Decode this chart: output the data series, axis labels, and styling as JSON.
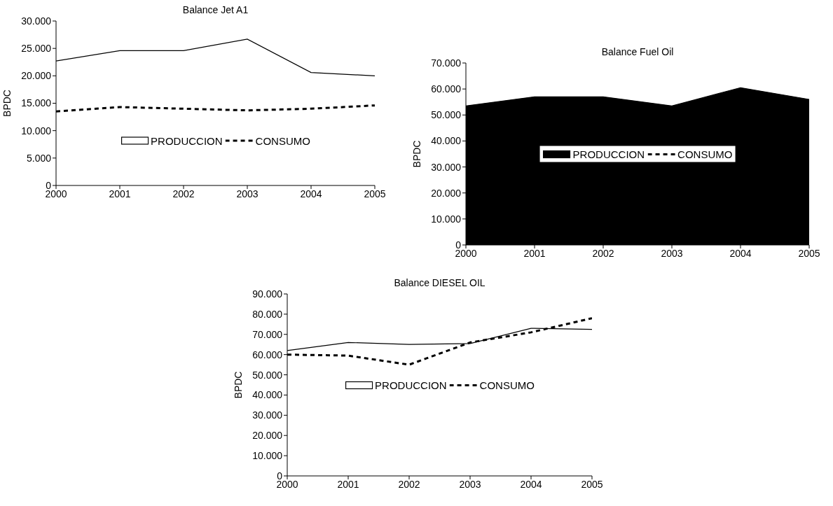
{
  "chart_data": [
    {
      "type": "area",
      "title": "Balance Jet A1",
      "ylabel": "BPDC",
      "x": [
        2000,
        2001,
        2002,
        2003,
        2004,
        2005
      ],
      "xlim": [
        2000,
        2005
      ],
      "xticks": [
        2000,
        2001,
        2002,
        2003,
        2004,
        2005
      ],
      "ylim": [
        0,
        30000
      ],
      "yticks": [
        {
          "value": 0,
          "label": "0"
        },
        {
          "value": 5000,
          "label": "5.000"
        },
        {
          "value": 10000,
          "label": "10.000"
        },
        {
          "value": 15000,
          "label": "15.000"
        },
        {
          "value": 20000,
          "label": "20.000"
        },
        {
          "value": 25000,
          "label": "25.000"
        },
        {
          "value": 30000,
          "label": "30.000"
        }
      ],
      "grid": false,
      "legend": "bottom",
      "series": [
        {
          "name": "PRODUCCION",
          "color": "#ffffff",
          "values": [
            22700,
            24600,
            24600,
            26700,
            20600,
            20000
          ]
        },
        {
          "name": "CONSUMO",
          "type": "line",
          "line_style": "dashed",
          "color": "#000000",
          "values": [
            13500,
            14300,
            14000,
            13700,
            14000,
            14600
          ]
        }
      ]
    },
    {
      "type": "area",
      "title": "Balance Fuel Oil",
      "ylabel": "BPDC",
      "x": [
        2000,
        2001,
        2002,
        2003,
        2004,
        2005
      ],
      "xlim": [
        2000,
        2005
      ],
      "xticks": [
        2000,
        2001,
        2002,
        2003,
        2004,
        2005
      ],
      "ylim": [
        0,
        70000
      ],
      "yticks": [
        {
          "value": 0,
          "label": "0"
        },
        {
          "value": 10000,
          "label": "10.000"
        },
        {
          "value": 20000,
          "label": "20.000"
        },
        {
          "value": 30000,
          "label": "30.000"
        },
        {
          "value": 40000,
          "label": "40.000"
        },
        {
          "value": 50000,
          "label": "50.000"
        },
        {
          "value": 60000,
          "label": "60.000"
        },
        {
          "value": 70000,
          "label": "70.000"
        }
      ],
      "grid": false,
      "legend": "center",
      "series": [
        {
          "name": "PRODUCCION",
          "color": "#000000",
          "values": [
            53500,
            57000,
            57000,
            53500,
            60500,
            56000
          ]
        },
        {
          "name": "CONSUMO",
          "type": "line",
          "line_style": "dashed",
          "color": "#000000",
          "values": [
            null,
            null,
            null,
            null,
            null,
            null
          ]
        }
      ]
    },
    {
      "type": "area",
      "title": "Balance DIESEL OIL",
      "ylabel": "BPDC",
      "x": [
        2000,
        2001,
        2002,
        2003,
        2004,
        2005
      ],
      "xlim": [
        2000,
        2005
      ],
      "xticks": [
        2000,
        2001,
        2002,
        2003,
        2004,
        2005
      ],
      "ylim": [
        0,
        90000
      ],
      "yticks": [
        {
          "value": 0,
          "label": "0"
        },
        {
          "value": 10000,
          "label": "10.000"
        },
        {
          "value": 20000,
          "label": "20.000"
        },
        {
          "value": 30000,
          "label": "30.000"
        },
        {
          "value": 40000,
          "label": "40.000"
        },
        {
          "value": 50000,
          "label": "50.000"
        },
        {
          "value": 60000,
          "label": "60.000"
        },
        {
          "value": 70000,
          "label": "70.000"
        },
        {
          "value": 80000,
          "label": "80.000"
        },
        {
          "value": 90000,
          "label": "90.000"
        }
      ],
      "grid": false,
      "legend": "center",
      "series": [
        {
          "name": "PRODUCCION",
          "color": "#ffffff",
          "values": [
            62000,
            66000,
            65000,
            65500,
            73000,
            72500
          ]
        },
        {
          "name": "CONSUMO",
          "type": "line",
          "line_style": "dashed",
          "color": "#000000",
          "values": [
            60000,
            59500,
            55000,
            66000,
            71000,
            78000
          ]
        }
      ]
    }
  ]
}
